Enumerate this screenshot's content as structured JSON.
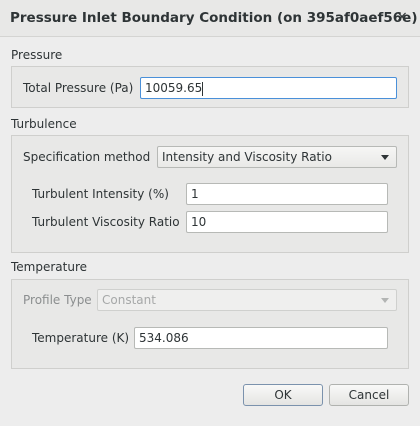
{
  "dialog": {
    "title": "Pressure Inlet Boundary Condition (on 395af0aef56e)",
    "close_glyph": "×"
  },
  "pressure": {
    "section_label": "Pressure",
    "total_pressure_label": "Total Pressure (Pa)",
    "total_pressure_value": "10059.65"
  },
  "turbulence": {
    "section_label": "Turbulence",
    "spec_method_label": "Specification method",
    "spec_method_value": "Intensity and Viscosity Ratio",
    "intensity_label": "Turbulent Intensity (%)",
    "intensity_value": "1",
    "viscosity_ratio_label": "Turbulent Viscosity Ratio",
    "viscosity_ratio_value": "10"
  },
  "temperature": {
    "section_label": "Temperature",
    "profile_type_label": "Profile Type",
    "profile_type_value": "Constant",
    "temperature_label": "Temperature (K)",
    "temperature_value": "534.086"
  },
  "buttons": {
    "ok_label": "OK",
    "cancel_label": "Cancel"
  }
}
